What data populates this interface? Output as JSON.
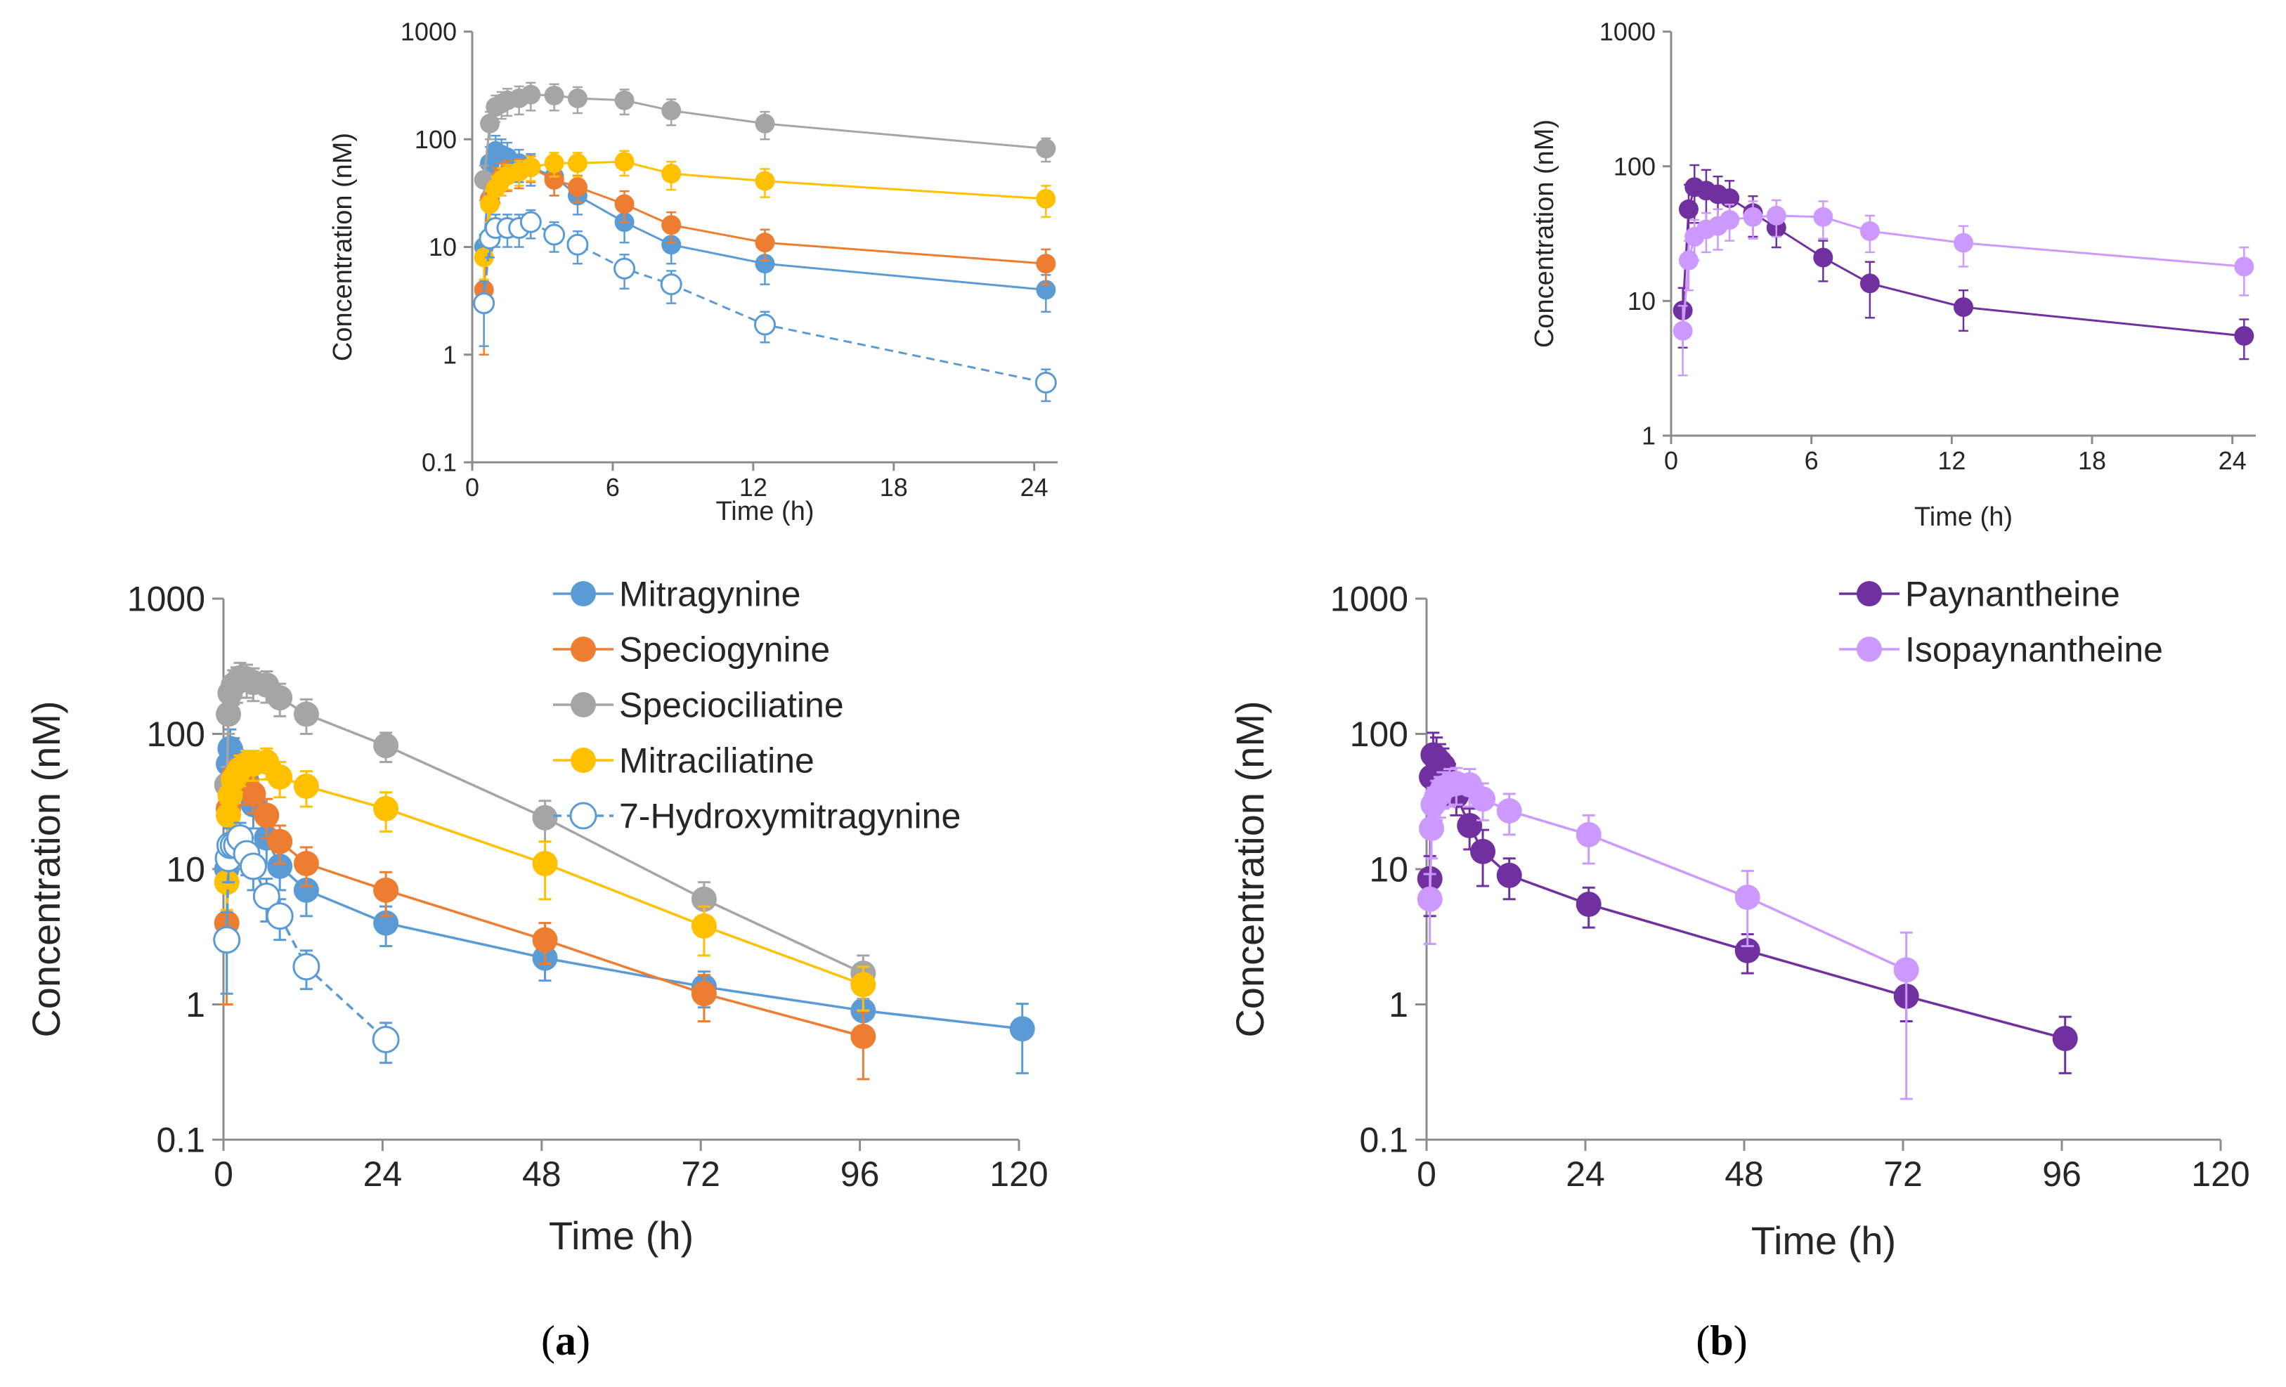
{
  "chart_data": [
    {
      "id": "a-top",
      "type": "line",
      "panel": "a",
      "yscale": "log",
      "xlim": [
        0,
        25
      ],
      "ylim": [
        0.1,
        1000
      ],
      "xticks": [
        "0",
        "6",
        "12",
        "18",
        "24"
      ],
      "xtick_values": [
        0,
        6,
        12,
        18,
        24
      ],
      "yticks": [
        "0.1",
        "1",
        "10",
        "100",
        "1000"
      ],
      "ytick_values": [
        0.1,
        1,
        10,
        100,
        1000
      ],
      "xlabel": "Time (h)",
      "ylabel": "Concentration (nM)",
      "legend": "none",
      "series": [
        {
          "name": "Mitragynine",
          "color": "#5b9bd5",
          "marker": "filled",
          "dashed": false,
          "x": [
            0.5,
            0.75,
            1,
            1.25,
            1.5,
            2,
            2.5,
            3.5,
            4.5,
            6.5,
            8.5,
            12.5,
            24.5
          ],
          "y": [
            10,
            60,
            78,
            72,
            68,
            60,
            55,
            45,
            30,
            17,
            10.5,
            7,
            4
          ],
          "err": [
            3,
            25,
            30,
            28,
            25,
            20,
            18,
            15,
            10,
            6,
            3.5,
            2.5,
            1.5
          ]
        },
        {
          "name": "Speciogynine",
          "color": "#ed7d31",
          "marker": "filled",
          "dashed": false,
          "x": [
            0.5,
            0.75,
            1,
            1.25,
            1.5,
            2,
            2.5,
            3.5,
            4.5,
            6.5,
            8.5,
            12.5,
            24.5
          ],
          "y": [
            4,
            28,
            40,
            45,
            48,
            50,
            55,
            42,
            36,
            25,
            16,
            11,
            7
          ],
          "err": [
            3,
            10,
            14,
            15,
            15,
            15,
            15,
            12,
            10,
            8,
            5,
            3.5,
            2.5
          ]
        },
        {
          "name": "Speciociliatine",
          "color": "#a5a5a5",
          "marker": "filled",
          "dashed": false,
          "x": [
            0.5,
            0.75,
            1,
            1.25,
            1.5,
            2,
            2.5,
            3.5,
            4.5,
            6.5,
            8.5,
            12.5,
            24.5
          ],
          "y": [
            42,
            140,
            200,
            215,
            230,
            240,
            260,
            255,
            240,
            230,
            185,
            140,
            82
          ],
          "err": [
            15,
            40,
            55,
            60,
            65,
            70,
            75,
            70,
            65,
            60,
            50,
            40,
            20
          ]
        },
        {
          "name": "Mitraciliatine",
          "color": "#ffc000",
          "marker": "filled",
          "dashed": false,
          "x": [
            0.5,
            0.75,
            1,
            1.25,
            1.5,
            2,
            2.5,
            3.5,
            4.5,
            6.5,
            8.5,
            12.5,
            24.5
          ],
          "y": [
            8,
            25,
            35,
            42,
            46,
            50,
            55,
            60,
            60,
            62,
            48,
            41,
            28
          ],
          "err": [
            3,
            8,
            10,
            12,
            12,
            13,
            14,
            15,
            15,
            16,
            14,
            12,
            9
          ]
        },
        {
          "name": "7-Hydroxymitragynine",
          "color": "#5b9bd5",
          "marker": "open",
          "dashed": true,
          "x": [
            0.5,
            0.75,
            1,
            1.5,
            2,
            2.5,
            3.5,
            4.5,
            6.5,
            8.5,
            12.5,
            24.5
          ],
          "y": [
            3,
            12,
            15,
            15,
            15,
            17,
            13,
            10.5,
            6.3,
            4.5,
            1.9,
            0.55
          ],
          "err": [
            1.8,
            4,
            5,
            5,
            5,
            5,
            4,
            3.5,
            2.2,
            1.5,
            0.6,
            0.18
          ]
        }
      ]
    },
    {
      "id": "a-bottom",
      "type": "line",
      "panel": "a",
      "yscale": "log",
      "xlim": [
        0,
        120
      ],
      "ylim": [
        0.1,
        1000
      ],
      "xticks": [
        "0",
        "24",
        "48",
        "72",
        "96",
        "120"
      ],
      "xtick_values": [
        0,
        24,
        48,
        72,
        96,
        120
      ],
      "yticks": [
        "0.1",
        "1",
        "10",
        "100",
        "1000"
      ],
      "ytick_values": [
        0.1,
        1,
        10,
        100,
        1000
      ],
      "xlabel": "Time (h)",
      "ylabel": "Concentration (nM)",
      "legend": "top-right",
      "series": [
        {
          "name": "Mitragynine",
          "color": "#5b9bd5",
          "marker": "filled",
          "dashed": false,
          "x": [
            0.5,
            0.75,
            1,
            1.5,
            2,
            2.5,
            3.5,
            4.5,
            6.5,
            8.5,
            12.5,
            24.5,
            48.5,
            72.5,
            96.5,
            120.5
          ],
          "y": [
            10,
            60,
            78,
            68,
            60,
            55,
            45,
            30,
            17,
            10.5,
            7,
            4,
            2.2,
            1.35,
            0.9,
            0.66
          ],
          "err": [
            3,
            25,
            30,
            25,
            20,
            18,
            15,
            10,
            6,
            3.5,
            2.5,
            1.3,
            0.7,
            0.4,
            0.3,
            0.35
          ]
        },
        {
          "name": "Speciogynine",
          "color": "#ed7d31",
          "marker": "filled",
          "dashed": false,
          "x": [
            0.5,
            0.75,
            1,
            1.5,
            2,
            2.5,
            3.5,
            4.5,
            6.5,
            8.5,
            12.5,
            24.5,
            48.5,
            72.5,
            96.5
          ],
          "y": [
            4,
            28,
            40,
            48,
            50,
            55,
            42,
            36,
            25,
            16,
            11,
            7,
            3,
            1.2,
            0.58
          ],
          "err": [
            3,
            10,
            14,
            15,
            15,
            15,
            12,
            10,
            8,
            5,
            3.5,
            2.5,
            1,
            0.45,
            0.3
          ]
        },
        {
          "name": "Speciociliatine",
          "color": "#a5a5a5",
          "marker": "filled",
          "dashed": false,
          "x": [
            0.5,
            0.75,
            1,
            1.5,
            2,
            2.5,
            3.5,
            4.5,
            6.5,
            8.5,
            12.5,
            24.5,
            48.5,
            72.5,
            96.5
          ],
          "y": [
            42,
            140,
            200,
            230,
            240,
            260,
            255,
            240,
            230,
            185,
            140,
            82,
            24,
            6,
            1.7
          ],
          "err": [
            15,
            40,
            55,
            65,
            70,
            75,
            70,
            65,
            60,
            50,
            40,
            20,
            8,
            2,
            0.6
          ]
        },
        {
          "name": "Mitraciliatine",
          "color": "#ffc000",
          "marker": "filled",
          "dashed": false,
          "x": [
            0.5,
            0.75,
            1,
            1.5,
            2,
            2.5,
            3.5,
            4.5,
            6.5,
            8.5,
            12.5,
            24.5,
            48.5,
            72.5,
            96.5
          ],
          "y": [
            8,
            25,
            35,
            46,
            50,
            55,
            60,
            60,
            62,
            48,
            41,
            28,
            11,
            3.8,
            1.4
          ],
          "err": [
            3,
            8,
            10,
            12,
            13,
            14,
            15,
            15,
            16,
            14,
            12,
            9,
            5,
            1.5,
            0.5
          ]
        },
        {
          "name": "7-Hydroxymitragynine",
          "color": "#5b9bd5",
          "marker": "open",
          "dashed": true,
          "x": [
            0.5,
            0.75,
            1,
            1.5,
            2,
            2.5,
            3.5,
            4.5,
            6.5,
            8.5,
            12.5,
            24.5
          ],
          "y": [
            3,
            12,
            15,
            15,
            15,
            17,
            13,
            10.5,
            6.3,
            4.5,
            1.9,
            0.55
          ],
          "err": [
            1.8,
            4,
            5,
            5,
            5,
            5,
            4,
            3.5,
            2.2,
            1.5,
            0.6,
            0.18
          ]
        }
      ]
    },
    {
      "id": "b-top",
      "type": "line",
      "panel": "b",
      "yscale": "log",
      "xlim": [
        0,
        25
      ],
      "ylim": [
        1,
        1000
      ],
      "xticks": [
        "0",
        "6",
        "12",
        "18",
        "24"
      ],
      "xtick_values": [
        0,
        6,
        12,
        18,
        24
      ],
      "yticks": [
        "1",
        "10",
        "100",
        "1000"
      ],
      "ytick_values": [
        1,
        10,
        100,
        1000
      ],
      "xlabel": "Time (h)",
      "ylabel": "Concentration (nM)",
      "legend": "none",
      "series": [
        {
          "name": "Paynantheine",
          "color": "#7030a0",
          "marker": "filled",
          "dashed": false,
          "x": [
            0.5,
            0.75,
            1,
            1.5,
            2,
            2.5,
            3.5,
            4.5,
            6.5,
            8.5,
            12.5,
            24.5
          ],
          "y": [
            8.5,
            48,
            70,
            66,
            62,
            58,
            45,
            35,
            21,
            13.5,
            9,
            5.5
          ],
          "err": [
            4,
            25,
            32,
            28,
            22,
            20,
            15,
            10,
            7,
            6,
            3,
            1.8
          ]
        },
        {
          "name": "Isopaynantheine",
          "color": "#cc99ff",
          "marker": "filled",
          "dashed": false,
          "x": [
            0.5,
            0.75,
            1,
            1.5,
            2,
            2.5,
            3.5,
            4.5,
            6.5,
            8.5,
            12.5,
            24.5
          ],
          "y": [
            6,
            20,
            30,
            34,
            36,
            40,
            42,
            43,
            42,
            33,
            27,
            18
          ],
          "err": [
            3.2,
            8,
            10,
            11,
            12,
            12,
            13,
            13,
            13,
            10,
            9,
            7
          ]
        }
      ]
    },
    {
      "id": "b-bottom",
      "type": "line",
      "panel": "b",
      "yscale": "log",
      "xlim": [
        0,
        120
      ],
      "ylim": [
        0.1,
        1000
      ],
      "xticks": [
        "0",
        "24",
        "48",
        "72",
        "96",
        "120"
      ],
      "xtick_values": [
        0,
        24,
        48,
        72,
        96,
        120
      ],
      "yticks": [
        "0.1",
        "1",
        "10",
        "100",
        "1000"
      ],
      "ytick_values": [
        0.1,
        1,
        10,
        100,
        1000
      ],
      "xlabel": "Time (h)",
      "ylabel": "Concentration (nM)",
      "legend": "top-right",
      "series": [
        {
          "name": "Paynantheine",
          "color": "#7030a0",
          "marker": "filled",
          "dashed": false,
          "x": [
            0.5,
            0.75,
            1,
            1.5,
            2,
            2.5,
            3.5,
            4.5,
            6.5,
            8.5,
            12.5,
            24.5,
            48.5,
            72.5,
            96.5
          ],
          "y": [
            8.5,
            48,
            70,
            66,
            62,
            58,
            45,
            35,
            21,
            13.5,
            9,
            5.5,
            2.5,
            1.15,
            0.56
          ],
          "err": [
            4,
            25,
            32,
            28,
            22,
            20,
            15,
            10,
            7,
            6,
            3,
            1.8,
            0.8,
            0.4,
            0.25
          ]
        },
        {
          "name": "Isopaynantheine",
          "color": "#cc99ff",
          "marker": "filled",
          "dashed": false,
          "x": [
            0.5,
            0.75,
            1,
            1.5,
            2,
            2.5,
            3.5,
            4.5,
            6.5,
            8.5,
            12.5,
            24.5,
            48.5,
            72.5
          ],
          "y": [
            6,
            20,
            30,
            34,
            36,
            40,
            42,
            43,
            42,
            33,
            27,
            18,
            6.2,
            1.8
          ],
          "err": [
            3.2,
            8,
            10,
            11,
            12,
            12,
            13,
            13,
            13,
            10,
            9,
            7,
            3.5,
            1.6
          ]
        }
      ]
    }
  ],
  "panel_labels": {
    "a": "(a)",
    "b": "(b)",
    "a_letter": "a",
    "b_letter": "b"
  }
}
